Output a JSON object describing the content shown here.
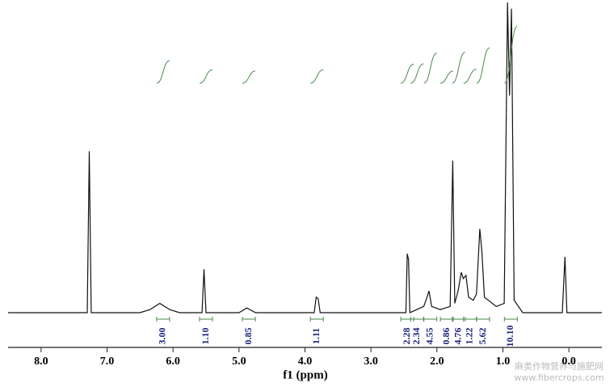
{
  "chart_data": {
    "type": "line",
    "x_label": "f1 (ppm)",
    "xlim": [
      8.5,
      -0.5
    ],
    "ylim": [
      0,
      100
    ],
    "xticks": [
      {
        "value": 8,
        "label": "8.0"
      },
      {
        "value": 7,
        "label": "7.0"
      },
      {
        "value": 6,
        "label": "6.0"
      },
      {
        "value": 5,
        "label": "5.0"
      },
      {
        "value": 4,
        "label": "4.0"
      },
      {
        "value": 3,
        "label": "3.0"
      },
      {
        "value": 2,
        "label": "2.0"
      },
      {
        "value": 1,
        "label": "1.0"
      },
      {
        "value": 0,
        "label": "0.0"
      }
    ],
    "series": [
      {
        "color": "#111111",
        "x": [
          8.5,
          7.3,
          7.27,
          7.24,
          6.5,
          6.35,
          6.2,
          6.05,
          5.9,
          5.56,
          5.53,
          5.5,
          5.0,
          4.88,
          4.75,
          3.86,
          3.83,
          3.8,
          3.77,
          2.47,
          2.45,
          2.43,
          2.41,
          2.2,
          2.15,
          2.12,
          2.08,
          1.95,
          1.8,
          1.76,
          1.73,
          1.68,
          1.63,
          1.6,
          1.56,
          1.52,
          1.45,
          1.4,
          1.35,
          1.32,
          1.28,
          1.1,
          0.98,
          0.93,
          0.9,
          0.87,
          0.83,
          0.7,
          0.1,
          0.06,
          0.03,
          -0.5
        ],
        "values": [
          0,
          0,
          52,
          0,
          0,
          1,
          3,
          1,
          0,
          0,
          14,
          0,
          0,
          1.5,
          0,
          0,
          5,
          4.5,
          0,
          0,
          19,
          17,
          0,
          2,
          5,
          7,
          2,
          1,
          2,
          49,
          3,
          7,
          13,
          11,
          12,
          5,
          4,
          6,
          27,
          20,
          5,
          2,
          3,
          100,
          70,
          98,
          4,
          0,
          0,
          18,
          0,
          0
        ]
      }
    ],
    "integrals": {
      "color": "#4a8a4a",
      "label_color": "#1a237e",
      "x": [
        6.15,
        5.5,
        4.85,
        3.82,
        2.45,
        2.3,
        2.1,
        1.85,
        1.67,
        1.5,
        1.3,
        0.88
      ],
      "values": [
        3,
        1.1,
        0.85,
        1.11,
        2.28,
        2.34,
        4.55,
        0.86,
        4.76,
        1.22,
        5.62,
        10.1
      ],
      "value_labels": [
        "3.00",
        "1.10",
        "0.85",
        "1.11",
        "2.28",
        "2.34",
        "4.55",
        "0.86",
        "4.76",
        "1.22",
        "5.62",
        "10.10"
      ]
    },
    "watermark": [
      "麻类作物营养与施肥网",
      "www.fibercrops.com"
    ]
  }
}
